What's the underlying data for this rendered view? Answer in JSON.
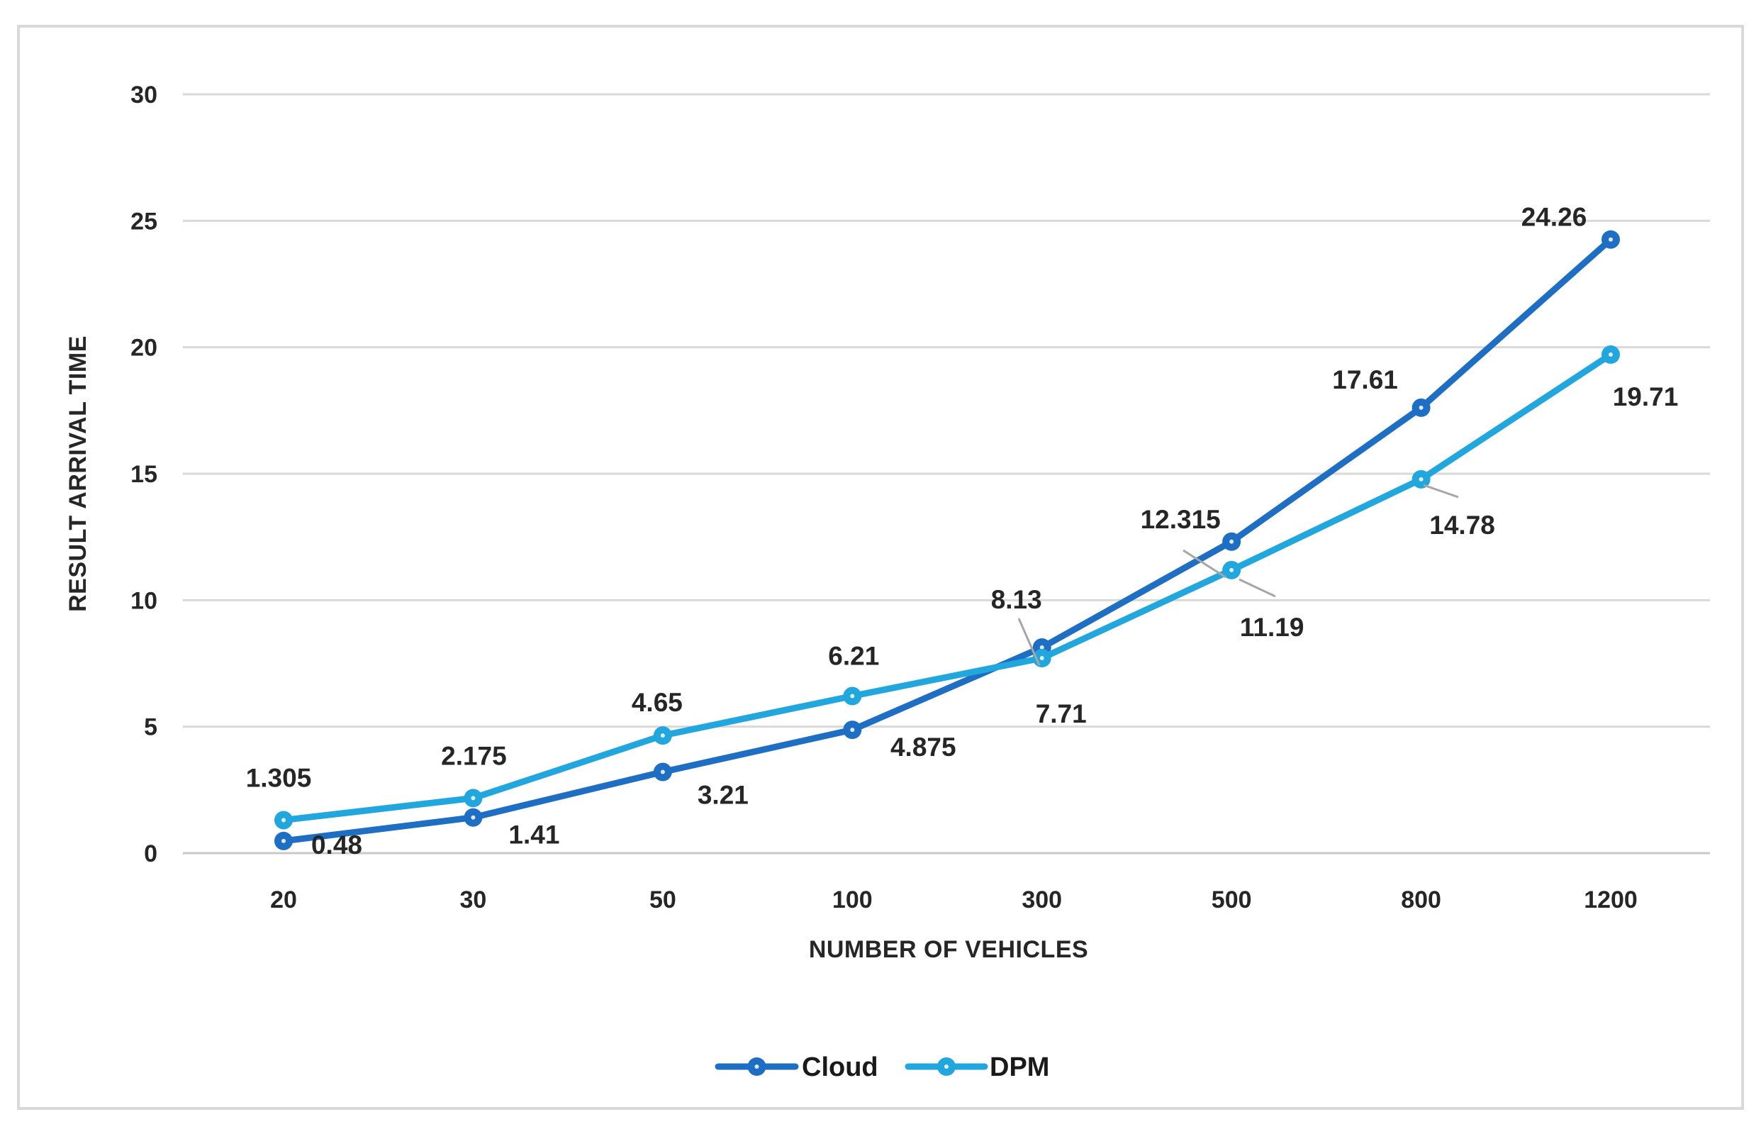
{
  "chart_data": {
    "type": "line",
    "title": "",
    "xlabel": "NUMBER OF VEHICLES",
    "ylabel": "RESULT ARRIVAL TIME",
    "categories": [
      "20",
      "30",
      "50",
      "100",
      "300",
      "500",
      "800",
      "1200"
    ],
    "y_ticks": [
      0,
      5,
      10,
      15,
      20,
      25,
      30
    ],
    "ylim": [
      0,
      30
    ],
    "grid": "horizontal",
    "legend_position": "bottom",
    "series": [
      {
        "name": "Cloud",
        "color": "#1E6EC3",
        "values": [
          0.48,
          1.41,
          3.21,
          4.875,
          8.13,
          12.315,
          17.61,
          24.26
        ],
        "labels": [
          "0.48",
          "1.41",
          "3.21",
          "4.875",
          "8.13",
          "12.315",
          "17.61",
          "24.26"
        ]
      },
      {
        "name": "DPM",
        "color": "#21A6DE",
        "values": [
          1.305,
          2.175,
          4.65,
          6.21,
          7.71,
          11.19,
          14.78,
          19.71
        ],
        "labels": [
          "1.305",
          "2.175",
          "4.65",
          "6.21",
          "7.71",
          "11.19",
          "14.78",
          "19.71"
        ]
      }
    ],
    "colors": {
      "gridline": "#D9D9D9",
      "axis_line": "#C9C9C9",
      "leader_line": "#A6A6A6",
      "text": "#262626",
      "background": "#FFFFFF",
      "border": "#D9D9D9"
    }
  }
}
